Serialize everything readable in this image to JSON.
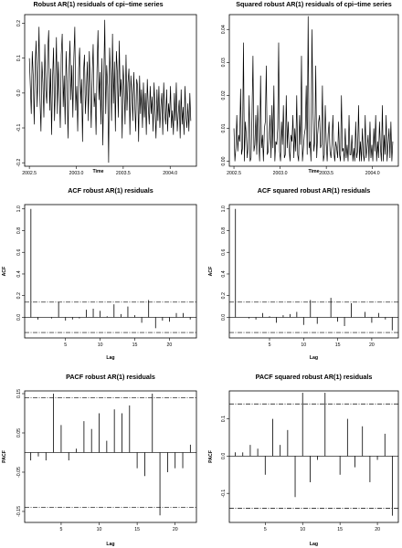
{
  "chart_data": [
    {
      "id": "ts",
      "type": "line",
      "title": "Robust AR(1) residuals of cpi−time series",
      "xlabel": "Time",
      "ylabel": "",
      "xlim": [
        2002.45,
        2004.28
      ],
      "ylim": [
        -0.21,
        0.225
      ],
      "xticks": [
        2002.5,
        2003.0,
        2003.5,
        2004.0
      ],
      "xtick_labels": [
        "2002.5",
        "2003.0",
        "2003.5",
        "2004.0"
      ],
      "yticks": [
        -0.2,
        -0.1,
        0.0,
        0.1,
        0.2
      ],
      "ytick_labels": [
        "-0.2",
        "-0.1",
        "0.0",
        "0.1",
        "0.2"
      ],
      "x_start": 2002.5,
      "x_end": 2004.22,
      "y": [
        0.1,
        0.02,
        -0.06,
        0.12,
        0.05,
        -0.09,
        0.08,
        0.15,
        -0.04,
        0.06,
        0.19,
        -0.02,
        -0.11,
        0.09,
        0.03,
        -0.07,
        0.14,
        0.01,
        -0.03,
        0.12,
        0.18,
        -0.05,
        0.07,
        -0.12,
        0.04,
        0.13,
        -0.08,
        0.02,
        0.16,
        -0.06,
        0.09,
        0.0,
        -0.1,
        0.11,
        0.17,
        -0.04,
        0.05,
        -0.09,
        0.12,
        0.03,
        -0.13,
        0.06,
        0.15,
        -0.02,
        0.08,
        -0.07,
        0.1,
        0.19,
        -0.05,
        0.02,
        -0.11,
        0.07,
        0.13,
        -0.03,
        0.04,
        -0.14,
        0.06,
        0.11,
        -0.06,
        0.01,
        0.09,
        -0.08,
        0.12,
        0.03,
        -0.1,
        0.05,
        0.14,
        -0.04,
        0.0,
        -0.12,
        0.07,
        0.18,
        -0.02,
        0.06,
        -0.09,
        0.1,
        -0.15,
        0.04,
        0.21,
        -0.06,
        0.08,
        0.02,
        -0.2,
        0.13,
        0.05,
        -0.08,
        0.17,
        -0.03,
        0.09,
        -0.11,
        0.12,
        0.06,
        -0.07,
        0.15,
        -0.01,
        0.04,
        -0.13,
        0.08,
        0.02,
        -0.09,
        0.11,
        -0.05,
        0.03,
        0.07,
        -0.12,
        0.05,
        0.0,
        -0.08,
        0.06,
        -0.03,
        -0.11,
        0.04,
        0.02,
        -0.14,
        0.05,
        -0.06,
        0.01,
        -0.1,
        0.03,
        -0.07,
        0.0,
        -0.12,
        0.04,
        -0.04,
        -0.09,
        0.02,
        -0.06,
        -0.01,
        -0.11,
        0.03,
        -0.05,
        -0.13,
        0.01,
        -0.08,
        0.02,
        -0.1,
        -0.04,
        0.0,
        -0.12,
        0.03,
        -0.06,
        -0.09,
        0.01,
        -0.11,
        -0.03,
        -0.07,
        0.02,
        -0.1,
        -0.05,
        -0.12,
        0.0,
        -0.08,
        0.03,
        -0.11,
        -0.06,
        -0.02,
        -0.13,
        0.01,
        -0.09,
        -0.04,
        -0.12,
        0.02,
        -0.07,
        -0.1,
        -0.03,
        -0.11,
        0.0,
        -0.08
      ]
    },
    {
      "id": "ts2",
      "type": "line",
      "title": "Squared robust AR(1) residuals of cpi−time series",
      "xlabel": "Time",
      "ylabel": "",
      "xlim": [
        2002.45,
        2004.28
      ],
      "ylim": [
        -0.0015,
        0.0445
      ],
      "xticks": [
        2002.5,
        2003.0,
        2003.5,
        2004.0
      ],
      "xtick_labels": [
        "2002.5",
        "2003.0",
        "2003.5",
        "2004.0"
      ],
      "yticks": [
        0.0,
        0.01,
        0.02,
        0.03,
        0.04
      ],
      "ytick_labels": [
        "0.00",
        "0.01",
        "0.02",
        "0.03",
        "0.04"
      ],
      "x_start": 2002.5,
      "x_end": 2004.22,
      "y": [
        0.01,
        0.0,
        0.004,
        0.014,
        0.003,
        0.008,
        0.006,
        0.022,
        0.002,
        0.004,
        0.036,
        0.0,
        0.012,
        0.008,
        0.001,
        0.005,
        0.02,
        0.0,
        0.001,
        0.014,
        0.032,
        0.003,
        0.005,
        0.014,
        0.002,
        0.017,
        0.006,
        0.0,
        0.026,
        0.004,
        0.008,
        0.0,
        0.01,
        0.012,
        0.029,
        0.002,
        0.003,
        0.008,
        0.014,
        0.001,
        0.017,
        0.004,
        0.023,
        0.0,
        0.006,
        0.005,
        0.01,
        0.036,
        0.003,
        0.0,
        0.012,
        0.005,
        0.017,
        0.001,
        0.002,
        0.02,
        0.004,
        0.012,
        0.004,
        0.0,
        0.008,
        0.006,
        0.014,
        0.001,
        0.01,
        0.003,
        0.02,
        0.002,
        0.0,
        0.014,
        0.005,
        0.032,
        0.0,
        0.004,
        0.008,
        0.01,
        0.023,
        0.002,
        0.044,
        0.004,
        0.006,
        0.0,
        0.04,
        0.017,
        0.003,
        0.006,
        0.029,
        0.001,
        0.008,
        0.012,
        0.014,
        0.004,
        0.005,
        0.023,
        0.0,
        0.002,
        0.017,
        0.006,
        0.0,
        0.008,
        0.012,
        0.003,
        0.001,
        0.005,
        0.014,
        0.003,
        0.0,
        0.006,
        0.004,
        0.001,
        0.012,
        0.002,
        0.0,
        0.02,
        0.003,
        0.004,
        0.0,
        0.01,
        0.001,
        0.005,
        0.0,
        0.014,
        0.002,
        0.002,
        0.008,
        0.0,
        0.004,
        0.0,
        0.012,
        0.001,
        0.003,
        0.017,
        0.0,
        0.006,
        0.0,
        0.01,
        0.002,
        0.0,
        0.014,
        0.001,
        0.004,
        0.008,
        0.0,
        0.012,
        0.001,
        0.005,
        0.0,
        0.01,
        0.003,
        0.014,
        0.0,
        0.006,
        0.001,
        0.012,
        0.004,
        0.0,
        0.017,
        0.0,
        0.008,
        0.002,
        0.014,
        0.0,
        0.005,
        0.01,
        0.001,
        0.012,
        0.0,
        0.006
      ]
    },
    {
      "id": "acf1",
      "type": "bar",
      "title": "ACF robust AR(1) residuals",
      "xlabel": "Lag",
      "ylabel": "ACF",
      "xlim": [
        -0.9,
        23.9
      ],
      "ylim": [
        -0.19,
        1.04
      ],
      "xticks": [
        5,
        10,
        15,
        20
      ],
      "xtick_labels": [
        "5",
        "10",
        "15",
        "20"
      ],
      "yticks": [
        0.0,
        0.2,
        0.4,
        0.6,
        0.8,
        1.0
      ],
      "ytick_labels": [
        "0.0",
        "0.2",
        "0.4",
        "0.6",
        "0.8",
        "1.0"
      ],
      "lags": [
        0,
        1,
        2,
        3,
        4,
        5,
        6,
        7,
        8,
        9,
        10,
        11,
        12,
        13,
        14,
        15,
        16,
        17,
        18,
        19,
        20,
        21,
        22,
        23
      ],
      "values": [
        1.0,
        -0.02,
        0.0,
        -0.01,
        0.14,
        -0.03,
        -0.02,
        -0.01,
        0.07,
        0.08,
        0.06,
        0.01,
        0.12,
        0.03,
        0.1,
        0.02,
        -0.05,
        0.16,
        -0.1,
        -0.03,
        -0.04,
        0.04,
        0.04,
        -0.02
      ],
      "conf_limit": 0.14
    },
    {
      "id": "acf2",
      "type": "bar",
      "title": "ACF squared robust AR(1) residuals",
      "xlabel": "Lag",
      "ylabel": "ACF",
      "xlim": [
        -0.9,
        23.9
      ],
      "ylim": [
        -0.19,
        1.04
      ],
      "xticks": [
        5,
        10,
        15,
        20
      ],
      "xtick_labels": [
        "5",
        "10",
        "15",
        "20"
      ],
      "yticks": [
        0.0,
        0.2,
        0.4,
        0.6,
        0.8,
        1.0
      ],
      "ytick_labels": [
        "0.0",
        "0.2",
        "0.4",
        "0.6",
        "0.8",
        "1.0"
      ],
      "lags": [
        0,
        1,
        2,
        3,
        4,
        5,
        6,
        7,
        8,
        9,
        10,
        11,
        12,
        13,
        14,
        15,
        16,
        17,
        18,
        19,
        20,
        21,
        22,
        23
      ],
      "values": [
        1.0,
        0.0,
        -0.01,
        -0.02,
        0.04,
        0.01,
        -0.05,
        0.02,
        0.03,
        0.05,
        -0.07,
        0.16,
        -0.06,
        0.0,
        0.18,
        -0.04,
        -0.08,
        0.13,
        0.0,
        0.05,
        -0.05,
        0.04,
        -0.02,
        -0.12
      ],
      "conf_limit": 0.14
    },
    {
      "id": "pacf1",
      "type": "bar",
      "title": "PACF robust AR(1) residuals",
      "xlabel": "Lag",
      "ylabel": "PACF",
      "xlim": [
        0.2,
        22.8
      ],
      "ylim": [
        -0.178,
        0.157
      ],
      "xticks": [
        5,
        10,
        15,
        20
      ],
      "xtick_labels": [
        "5",
        "10",
        "15",
        "20"
      ],
      "yticks": [
        -0.15,
        -0.05,
        0.05,
        0.15
      ],
      "ytick_labels": [
        "-0.15",
        "-0.05",
        "0.05",
        "0.15"
      ],
      "lags": [
        1,
        2,
        3,
        4,
        5,
        6,
        7,
        8,
        9,
        10,
        11,
        12,
        13,
        14,
        15,
        16,
        17,
        18,
        19,
        20,
        21,
        22
      ],
      "values": [
        -0.02,
        -0.01,
        -0.02,
        0.15,
        0.07,
        -0.02,
        0.01,
        0.08,
        0.06,
        0.1,
        0.03,
        0.11,
        0.1,
        0.12,
        -0.04,
        -0.06,
        0.15,
        -0.16,
        -0.05,
        -0.04,
        -0.04,
        0.02
      ],
      "conf_limit": 0.14
    },
    {
      "id": "pacf2",
      "type": "bar",
      "title": "PACF squared robust AR(1) residuals",
      "xlabel": "Lag",
      "ylabel": "PACF",
      "xlim": [
        0.2,
        22.8
      ],
      "ylim": [
        -0.178,
        0.175
      ],
      "xticks": [
        5,
        10,
        15,
        20
      ],
      "xtick_labels": [
        "5",
        "10",
        "15",
        "20"
      ],
      "yticks": [
        -0.1,
        0.0,
        0.1
      ],
      "ytick_labels": [
        "-0.1",
        "0.0",
        "0.1"
      ],
      "lags": [
        1,
        2,
        3,
        4,
        5,
        6,
        7,
        8,
        9,
        10,
        11,
        12,
        13,
        14,
        15,
        16,
        17,
        18,
        19,
        20,
        21,
        22
      ],
      "values": [
        0.01,
        0.01,
        0.03,
        0.02,
        -0.05,
        0.1,
        0.03,
        0.07,
        -0.11,
        0.17,
        -0.07,
        -0.01,
        0.17,
        0.0,
        -0.05,
        0.1,
        -0.03,
        0.08,
        -0.07,
        -0.01,
        0.06,
        -0.16
      ],
      "conf_limit": 0.14
    }
  ]
}
